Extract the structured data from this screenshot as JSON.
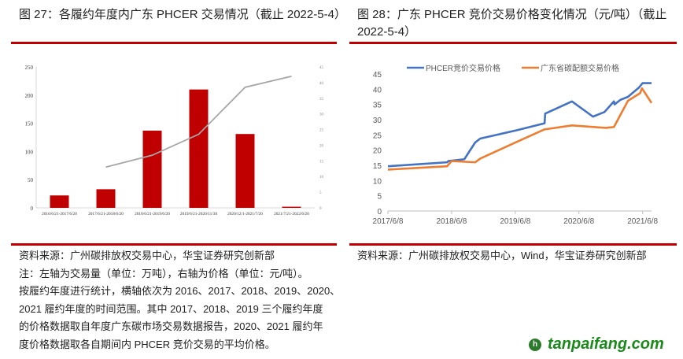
{
  "left_panel": {
    "title": "图 27：各履约年度内广东 PHCER 交易情况（截止 2022-5-4）",
    "source": "资料来源：广州碳排放权交易中心，华宝证券研究创新部",
    "notes": [
      "注：左轴为交易量（单位：万吨），右轴为价格（单位：元/吨）。",
      "按履约年度进行统计，横轴依次为 2016、2017、2018、2019、2020、",
      "2021 履约年度的时间范围。其中 2017、2018、2019 三个履约年度",
      "的价格数据取自年度广东碳市场交易数据报告，2020、2021 履约年",
      "度价格数据取各自期间内 PHCER 竞价交易的平均价格。"
    ]
  },
  "right_panel": {
    "title_line1": "图 28：广东 PHCER 竞价交易价格变化情况（元/吨）（截止",
    "title_line2": "2022-5-4）",
    "source": "资料来源：广州碳排放权交易中心，Wind，华宝证券研究创新部"
  },
  "watermark": {
    "text": "tanpaifang.com",
    "mark": "h"
  },
  "colors": {
    "bar": "#c00000",
    "line_gray": "#a6a6a6",
    "blue": "#4472c4",
    "orange": "#ed7d31",
    "rule": "#c00000"
  },
  "chart_data": [
    {
      "type": "bar",
      "categories": [
        "2016/6/21-2017/6/20",
        "2017/6/21-2018/6/20",
        "2018/6/21-2019/6/20",
        "2019/6/21-2020/11/30",
        "2020/12/1-2021/7/20",
        "2021/7/21-2022/6/20"
      ],
      "series": [
        {
          "name": "交易量",
          "axis": "left",
          "type": "bar",
          "values": [
            22,
            33,
            137,
            210,
            131,
            2
          ]
        },
        {
          "name": "价格",
          "axis": "right",
          "type": "line",
          "values": [
            null,
            13,
            16.8,
            23.5,
            38.5,
            42
          ]
        }
      ],
      "ylim_left": [
        0,
        250
      ],
      "yticks_left": [
        "0",
        "50",
        "100",
        "150",
        "200",
        "250"
      ],
      "ylim_right": [
        0,
        45
      ],
      "yticks_right": [
        "0",
        "5",
        "10",
        "15",
        "20",
        "25",
        "30",
        "35",
        "40",
        "45"
      ],
      "grid": false
    },
    {
      "type": "line",
      "x_unit": "years since 2017/6/8",
      "xlim": [
        0,
        4.14
      ],
      "xticks": [
        {
          "v": 0,
          "label": "2017/6/8"
        },
        {
          "v": 1,
          "label": "2018/6/8"
        },
        {
          "v": 2,
          "label": "2019/6/8"
        },
        {
          "v": 3,
          "label": "2020/6/8"
        },
        {
          "v": 4,
          "label": "2021/6/8"
        }
      ],
      "ylim": [
        0,
        45
      ],
      "yticks": [
        "0",
        "5",
        "10",
        "15",
        "20",
        "25",
        "30",
        "35",
        "40",
        "45"
      ],
      "legend_position": "top",
      "series": [
        {
          "name": "PHCER竞价交易价格",
          "x": [
            0,
            0.93,
            0.95,
            1.2,
            1.37,
            1.45,
            2.02,
            2.46,
            2.47,
            2.89,
            3.22,
            3.4,
            3.55,
            3.56,
            3.65,
            3.77,
            3.94,
            4.0,
            4.14
          ],
          "y": [
            14.7,
            16.0,
            16.4,
            17.0,
            22.5,
            23.8,
            26.5,
            28.8,
            32,
            36,
            31,
            32.5,
            36,
            35,
            36.5,
            37.5,
            40.5,
            42,
            42
          ]
        },
        {
          "name": "广东省碳配额交易价格",
          "x": [
            0,
            0.93,
            1.0,
            1.37,
            1.45,
            1.98,
            2.46,
            2.89,
            3.42,
            3.55,
            3.77,
            3.96,
            3.99,
            4.14
          ],
          "y": [
            13.6,
            14.7,
            16.4,
            16.0,
            17.2,
            22.3,
            26.8,
            28.1,
            27.3,
            27.6,
            36.2,
            38.7,
            40.3,
            35.5
          ]
        }
      ],
      "grid": false
    }
  ]
}
